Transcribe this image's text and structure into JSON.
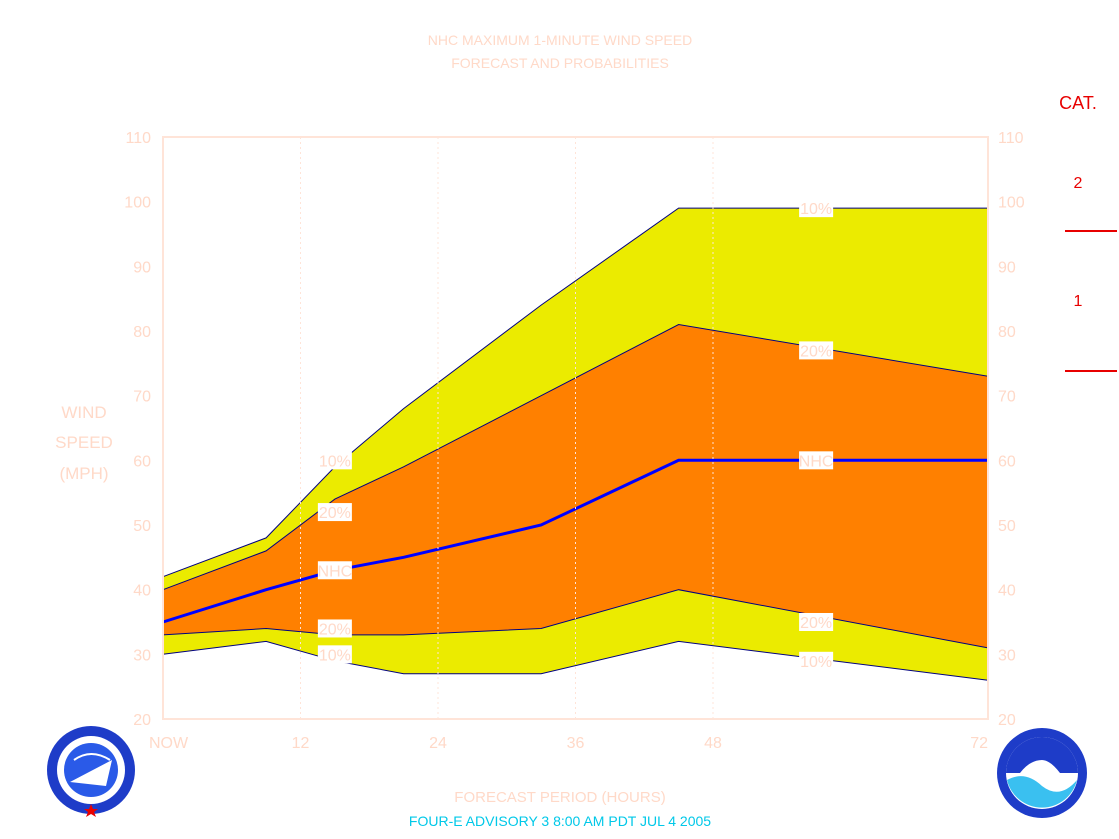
{
  "title_line1": "NHC MAXIMUM 1-MINUTE WIND SPEED",
  "title_line2": "FORECAST AND PROBABILITIES",
  "ylabel": [
    "WIND",
    "SPEED",
    "(MPH)"
  ],
  "xlabel": "FORECAST PERIOD (HOURS)",
  "footer": "FOUR-E   ADVISORY  3 8:00  AM  PDT  JUL  4  2005",
  "category_title": "CAT.",
  "categories": [
    {
      "label": "2"
    },
    {
      "label": "1"
    }
  ],
  "colors": {
    "band_10": "#ebeb00",
    "band_20": "#ff8000",
    "nhc_line": "#0000ff",
    "outline": "#000080",
    "label_text": "#ffd9c8",
    "category": "#e80000",
    "footer": "#00c8e8"
  },
  "chart_data": {
    "type": "area",
    "xlabel": "FORECAST PERIOD (HOURS)",
    "ylabel": "WIND SPEED (MPH)",
    "xlim": [
      0,
      72
    ],
    "ylim": [
      20,
      110
    ],
    "x_ticks": [
      {
        "value": 0,
        "label": "NOW"
      },
      {
        "value": 12,
        "label": "12"
      },
      {
        "value": 24,
        "label": "24"
      },
      {
        "value": 36,
        "label": "36"
      },
      {
        "value": 48,
        "label": "48"
      },
      {
        "value": 72,
        "label": "72"
      }
    ],
    "y_ticks": [
      20,
      30,
      40,
      50,
      60,
      70,
      80,
      90,
      100,
      110
    ],
    "grid": true,
    "category_thresholds_mph": [
      96,
      74
    ],
    "upper_10": [
      {
        "x": 0,
        "y": 42
      },
      {
        "x": 9,
        "y": 48
      },
      {
        "x": 15,
        "y": 59
      },
      {
        "x": 21,
        "y": 68
      },
      {
        "x": 33,
        "y": 84
      },
      {
        "x": 45,
        "y": 99
      },
      {
        "x": 72,
        "y": 99
      }
    ],
    "upper_20": [
      {
        "x": 0,
        "y": 40
      },
      {
        "x": 9,
        "y": 46
      },
      {
        "x": 15,
        "y": 54
      },
      {
        "x": 21,
        "y": 59
      },
      {
        "x": 33,
        "y": 70
      },
      {
        "x": 45,
        "y": 81
      },
      {
        "x": 72,
        "y": 73
      }
    ],
    "nhc": [
      {
        "x": 0,
        "y": 35
      },
      {
        "x": 9,
        "y": 40
      },
      {
        "x": 15,
        "y": 43
      },
      {
        "x": 21,
        "y": 45
      },
      {
        "x": 33,
        "y": 50
      },
      {
        "x": 45,
        "y": 60
      },
      {
        "x": 72,
        "y": 60
      }
    ],
    "lower_20": [
      {
        "x": 0,
        "y": 33
      },
      {
        "x": 9,
        "y": 34
      },
      {
        "x": 15,
        "y": 33
      },
      {
        "x": 21,
        "y": 33
      },
      {
        "x": 33,
        "y": 34
      },
      {
        "x": 45,
        "y": 40
      },
      {
        "x": 72,
        "y": 31
      }
    ],
    "lower_10": [
      {
        "x": 0,
        "y": 30
      },
      {
        "x": 9,
        "y": 32
      },
      {
        "x": 15,
        "y": 29
      },
      {
        "x": 21,
        "y": 27
      },
      {
        "x": 33,
        "y": 27
      },
      {
        "x": 45,
        "y": 32
      },
      {
        "x": 72,
        "y": 26
      }
    ],
    "band_labels": [
      {
        "text": "10%",
        "x": 15,
        "y": 60
      },
      {
        "text": "20%",
        "x": 15,
        "y": 52
      },
      {
        "text": "NHC",
        "x": 15,
        "y": 43
      },
      {
        "text": "20%",
        "x": 15,
        "y": 34
      },
      {
        "text": "10%",
        "x": 15,
        "y": 30
      },
      {
        "text": "10%",
        "x": 57,
        "y": 99
      },
      {
        "text": "20%",
        "x": 57,
        "y": 77
      },
      {
        "text": "NHC",
        "x": 57,
        "y": 60
      },
      {
        "text": "20%",
        "x": 57,
        "y": 35
      },
      {
        "text": "10%",
        "x": 57,
        "y": 29
      }
    ]
  }
}
